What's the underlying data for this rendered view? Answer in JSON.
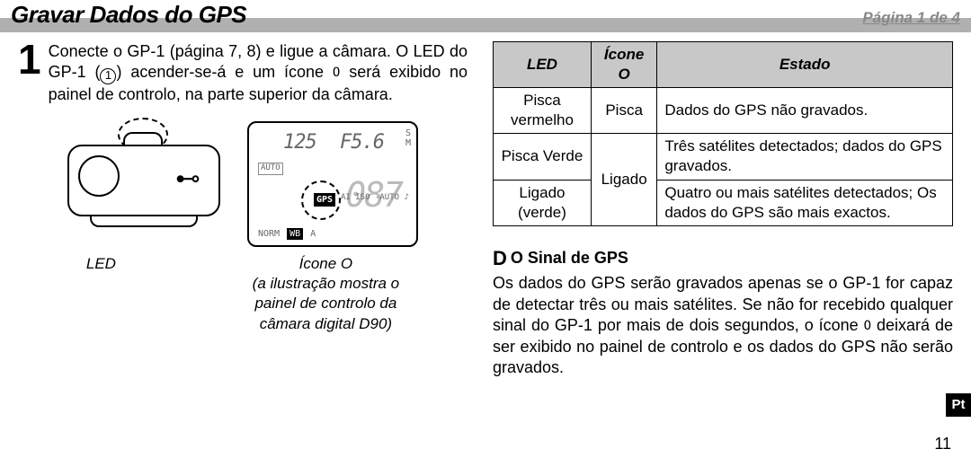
{
  "header": {
    "title": "Gravar Dados do GPS",
    "page_indicator": "Página 1 de 4"
  },
  "step": {
    "number": "1",
    "text_before_ref": "Conecte o GP-1 (página 7, 8) e ligue a câmara. O LED do GP-1 (",
    "ref": "1",
    "text_after_ref": ") acender-se-á e um ícone ",
    "gps_glyph": "O",
    "text_tail": " será exibido no painel de controlo, na parte superior da câmara."
  },
  "lcd": {
    "shutter": "125",
    "aperture_prefix": "F",
    "aperture": "5.6",
    "side": "S\nM",
    "auto_box": "AUTO",
    "iso": "ISO",
    "auto2": "-AUTO",
    "gps_tag": "GPS",
    "big_num": "087",
    "norm": "NORM",
    "wb": "WB",
    "wb_mode": "A",
    "music": "♪",
    "ai": "AI"
  },
  "captions": {
    "left": "LED",
    "right_line1": "Ícone O",
    "right_line2": "(a ilustração mostra o",
    "right_line3": "painel de controlo da",
    "right_line4": "câmara digital D90)"
  },
  "table": {
    "headers": [
      "LED",
      "Ícone O",
      "Estado"
    ],
    "rows": [
      {
        "led": "Pisca vermelho",
        "icon": "Pisca",
        "state": "Dados do GPS não gravados.",
        "icon_rowspan": 1
      },
      {
        "led": "Pisca Verde",
        "icon": "Ligado",
        "state": "Três satélites detectados; dados do GPS gravados.",
        "icon_rowspan": 2
      },
      {
        "led": "Ligado (verde)",
        "state": "Quatro ou mais satélites detectados; Os dados do GPS são mais exactos."
      }
    ]
  },
  "note": {
    "check": "D",
    "heading": "O Sinal de GPS",
    "body_a": "Os dados do GPS serão gravados apenas se o GP-1 for capaz de detectar três ou mais satélites. Se não for recebido qualquer sinal do GP-1 por mais de dois segundos, o ícone ",
    "body_glyph": "O",
    "body_b": " deixará de ser exibido no painel de controlo e os dados do GPS não serão gravados."
  },
  "side_tab": "Pt",
  "page_number": "11",
  "colors": {
    "header_grey": "#b0b0b0",
    "table_header_bg": "#c8c8c8",
    "page_ind": "#888888"
  }
}
